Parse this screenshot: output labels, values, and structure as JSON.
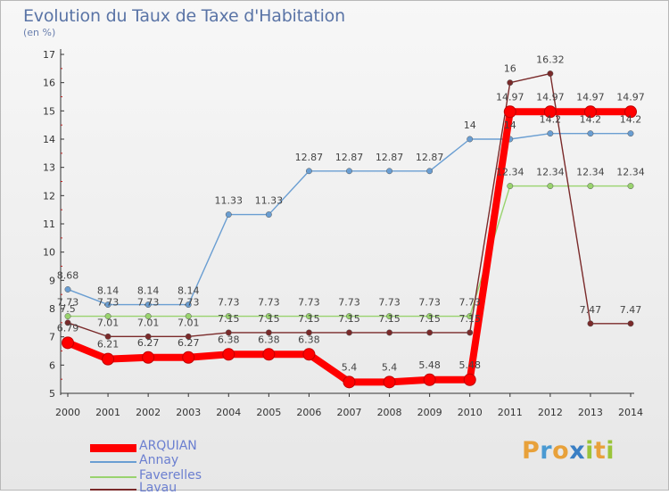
{
  "header": {
    "title": "Evolution du Taux de Taxe d'Habitation",
    "subtitle": "(en %)"
  },
  "brand": {
    "letters": [
      "P",
      "r",
      "o",
      "x",
      "i",
      "t",
      "i"
    ],
    "colors": [
      "#e8a13a",
      "#4a9ad2",
      "#e8a13a",
      "#3a7fc4",
      "#9ac43a",
      "#e8a13a",
      "#9ac43a"
    ]
  },
  "chart_data": {
    "type": "line",
    "title": "Evolution du Taux de Taxe d'Habitation",
    "subtitle": "(en %)",
    "xlabel": "",
    "ylabel": "",
    "ylim": [
      5,
      17
    ],
    "yticks": [
      5,
      6,
      7,
      8,
      9,
      10,
      11,
      12,
      13,
      14,
      15,
      16,
      17
    ],
    "grid": false,
    "legend_position": "bottom-left",
    "categories": [
      "2000",
      "2001",
      "2002",
      "2003",
      "2004",
      "2005",
      "2006",
      "2007",
      "2008",
      "2009",
      "2010",
      "2011",
      "2012",
      "2013",
      "2014"
    ],
    "series": [
      {
        "name": "ARQUIAN",
        "color": "#ff0000",
        "emphasis": true,
        "values": [
          6.79,
          6.21,
          6.27,
          6.27,
          6.38,
          6.38,
          6.38,
          5.4,
          5.4,
          5.48,
          5.48,
          14.97,
          14.97,
          14.97,
          14.97
        ],
        "labels": [
          "6.79",
          "6.21",
          "6.27",
          "6.27",
          "6.38",
          "6.38",
          "6.38",
          "5.4",
          "5.4",
          "5.48",
          "5.48",
          "14.97",
          "14.97",
          "14.97",
          "14.97"
        ]
      },
      {
        "name": "Annay",
        "color": "#6a9ed2",
        "emphasis": false,
        "values": [
          8.68,
          8.14,
          8.14,
          8.14,
          11.33,
          11.33,
          12.87,
          12.87,
          12.87,
          12.87,
          14,
          14,
          14.2,
          14.2,
          14.2
        ],
        "labels": [
          "8.68",
          "8.14",
          "8.14",
          "8.14",
          "11.33",
          "11.33",
          "12.87",
          "12.87",
          "12.87",
          "12.87",
          "14",
          "14",
          "14.2",
          "14.2",
          "14.2"
        ]
      },
      {
        "name": "Faverelles",
        "color": "#99d36e",
        "emphasis": false,
        "values": [
          7.73,
          7.73,
          7.73,
          7.73,
          7.73,
          7.73,
          7.73,
          7.73,
          7.73,
          7.73,
          7.73,
          12.34,
          12.34,
          12.34,
          12.34
        ],
        "labels": [
          "7.73",
          "7.73",
          "7.73",
          "7.73",
          "7.73",
          "7.73",
          "7.73",
          "7.73",
          "7.73",
          "7.73",
          "7.73",
          "12.34",
          "12.34",
          "12.34",
          "12.34"
        ]
      },
      {
        "name": "Lavau",
        "color": "#7a2a2a",
        "emphasis": false,
        "values": [
          7.5,
          7.01,
          7.01,
          7.01,
          7.15,
          7.15,
          7.15,
          7.15,
          7.15,
          7.15,
          7.15,
          16,
          16.32,
          7.47,
          7.47
        ],
        "labels": [
          "7.5",
          "7.01",
          "7.01",
          "7.01",
          "7.15",
          "7.15",
          "7.15",
          "7.15",
          "7.15",
          "7.15",
          "7.15",
          "16",
          "16.32",
          "7.47",
          "7.47"
        ]
      }
    ]
  }
}
